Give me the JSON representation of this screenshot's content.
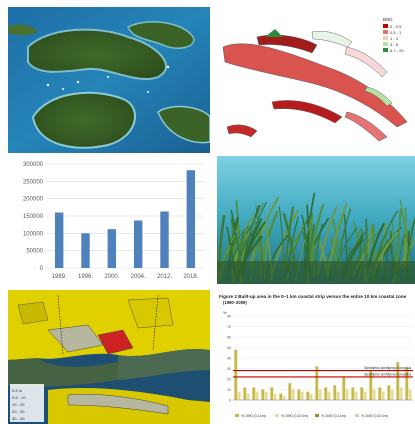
{
  "bar_chart": {
    "chart_data": {
      "type": "bar",
      "categories": [
        "1989.",
        "1996.",
        "2000.",
        "2004.",
        "2012.",
        "2018."
      ],
      "values": [
        160000,
        100000,
        112000,
        137000,
        163000,
        282000
      ],
      "ylim": [
        0,
        300000
      ],
      "yticks": [
        "0",
        "50000",
        "100000",
        "150000",
        "200000",
        "250000",
        "300000"
      ],
      "grid": true,
      "color": "#4f81bd"
    }
  },
  "map_legend": {
    "title": "BND",
    "items": [
      {
        "label": "0 - 0.5",
        "color": "#c00000"
      },
      {
        "label": "0.5 - 1",
        "color": "#e57373"
      },
      {
        "label": "1 - 3",
        "color": "#f4cccc"
      },
      {
        "label": "3 - 6",
        "color": "#b7e1a1"
      },
      {
        "label": "6.7 - 20",
        "color": "#2e8b3c"
      }
    ]
  },
  "zoning_map_legend": [
    "0-5 m",
    "0-5 - 10",
    "10 - 20",
    "20 - 30",
    "30 - 40"
  ],
  "builtup_chart": {
    "title": "Figure 2  Built-up area in the 0–1 km coastal strip versus the entire 10 km coastal zone",
    "subtitle": "(1990–2009)",
    "ylabel": "%",
    "yticks": [
      "80",
      "70",
      "60",
      "50",
      "40",
      "30",
      "20",
      "10",
      "0"
    ],
    "line_labels": [
      "Sjedinjeno izmišljena Europska",
      "Sjedinjeno izmišljena Europska"
    ],
    "legend": [
      "% 1990 (0-1 km)",
      "% 1990 (0-10 km)",
      "% 2000 (0-1 km)",
      "% 2000 (0-10 km)"
    ],
    "chart_data": {
      "type": "bar",
      "series": [
        {
          "values": [
            48,
            12,
            12,
            10,
            12,
            6,
            16,
            10,
            8,
            32,
            12,
            14,
            22,
            12,
            12,
            28,
            12,
            14,
            36,
            30
          ]
        },
        {
          "values": [
            8,
            6,
            8,
            8,
            6,
            4,
            10,
            8,
            6,
            10,
            8,
            8,
            10,
            8,
            8,
            10,
            8,
            10,
            12,
            10
          ]
        }
      ],
      "ylim": [
        0,
        80
      ],
      "reference_lines": [
        28,
        22
      ]
    }
  }
}
